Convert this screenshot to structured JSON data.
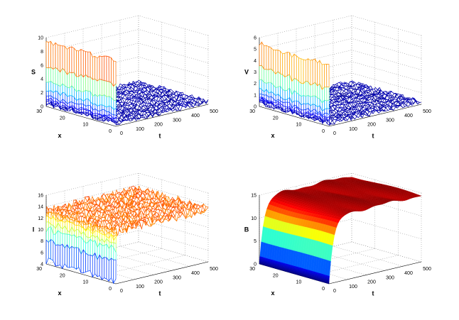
{
  "chart_data": [
    {
      "type": "surface",
      "style": "mesh",
      "zlabel": "S",
      "xlabel": "x",
      "ylabel": "t",
      "xlim": [
        0,
        30
      ],
      "tlim": [
        0,
        500
      ],
      "zlim": [
        0,
        10
      ],
      "xticks": [
        "0",
        "10",
        "20",
        "30"
      ],
      "tticks": [
        "0",
        "100",
        "200",
        "300",
        "400",
        "500"
      ],
      "zticks": [
        "0",
        "2",
        "4",
        "6",
        "8",
        "10"
      ],
      "initial_level": 9.5,
      "steady_level": 0.4,
      "noise": 0.35,
      "grid": true
    },
    {
      "type": "surface",
      "style": "mesh",
      "zlabel": "V",
      "xlabel": "x",
      "ylabel": "t",
      "xlim": [
        0,
        30
      ],
      "tlim": [
        0,
        500
      ],
      "zlim": [
        0,
        6
      ],
      "xticks": [
        "0",
        "10",
        "20",
        "30"
      ],
      "tticks": [
        "0",
        "100",
        "200",
        "300",
        "400",
        "500"
      ],
      "zticks": [
        "0",
        "1",
        "2",
        "3",
        "4",
        "5",
        "6"
      ],
      "initial_level": 5.3,
      "steady_level": 0.25,
      "noise": 0.2,
      "grid": true
    },
    {
      "type": "surface",
      "style": "mesh",
      "zlabel": "I",
      "xlabel": "x",
      "ylabel": "t",
      "xlim": [
        0,
        30
      ],
      "tlim": [
        0,
        500
      ],
      "zlim": [
        4,
        16
      ],
      "xticks": [
        "0",
        "10",
        "20",
        "30"
      ],
      "tticks": [
        "0",
        "100",
        "200",
        "300",
        "400",
        "500"
      ],
      "zticks": [
        "4",
        "6",
        "8",
        "10",
        "12",
        "14",
        "16"
      ],
      "initial_level": 4.5,
      "steady_level": 13.2,
      "noise": 0.9,
      "grid": true
    },
    {
      "type": "surface",
      "style": "surf",
      "zlabel": "B",
      "xlabel": "x",
      "ylabel": "t",
      "xlim": [
        0,
        30
      ],
      "tlim": [
        0,
        500
      ],
      "zlim": [
        0,
        15
      ],
      "xticks": [
        "0",
        "10",
        "20",
        "30"
      ],
      "tticks": [
        "0",
        "100",
        "200",
        "300",
        "400",
        "500"
      ],
      "zticks": [
        "0",
        "5",
        "10",
        "15"
      ],
      "initial_level": 0,
      "steady_level": 14.5,
      "rise_time": 25,
      "noise": 0.25,
      "grid": true
    }
  ]
}
